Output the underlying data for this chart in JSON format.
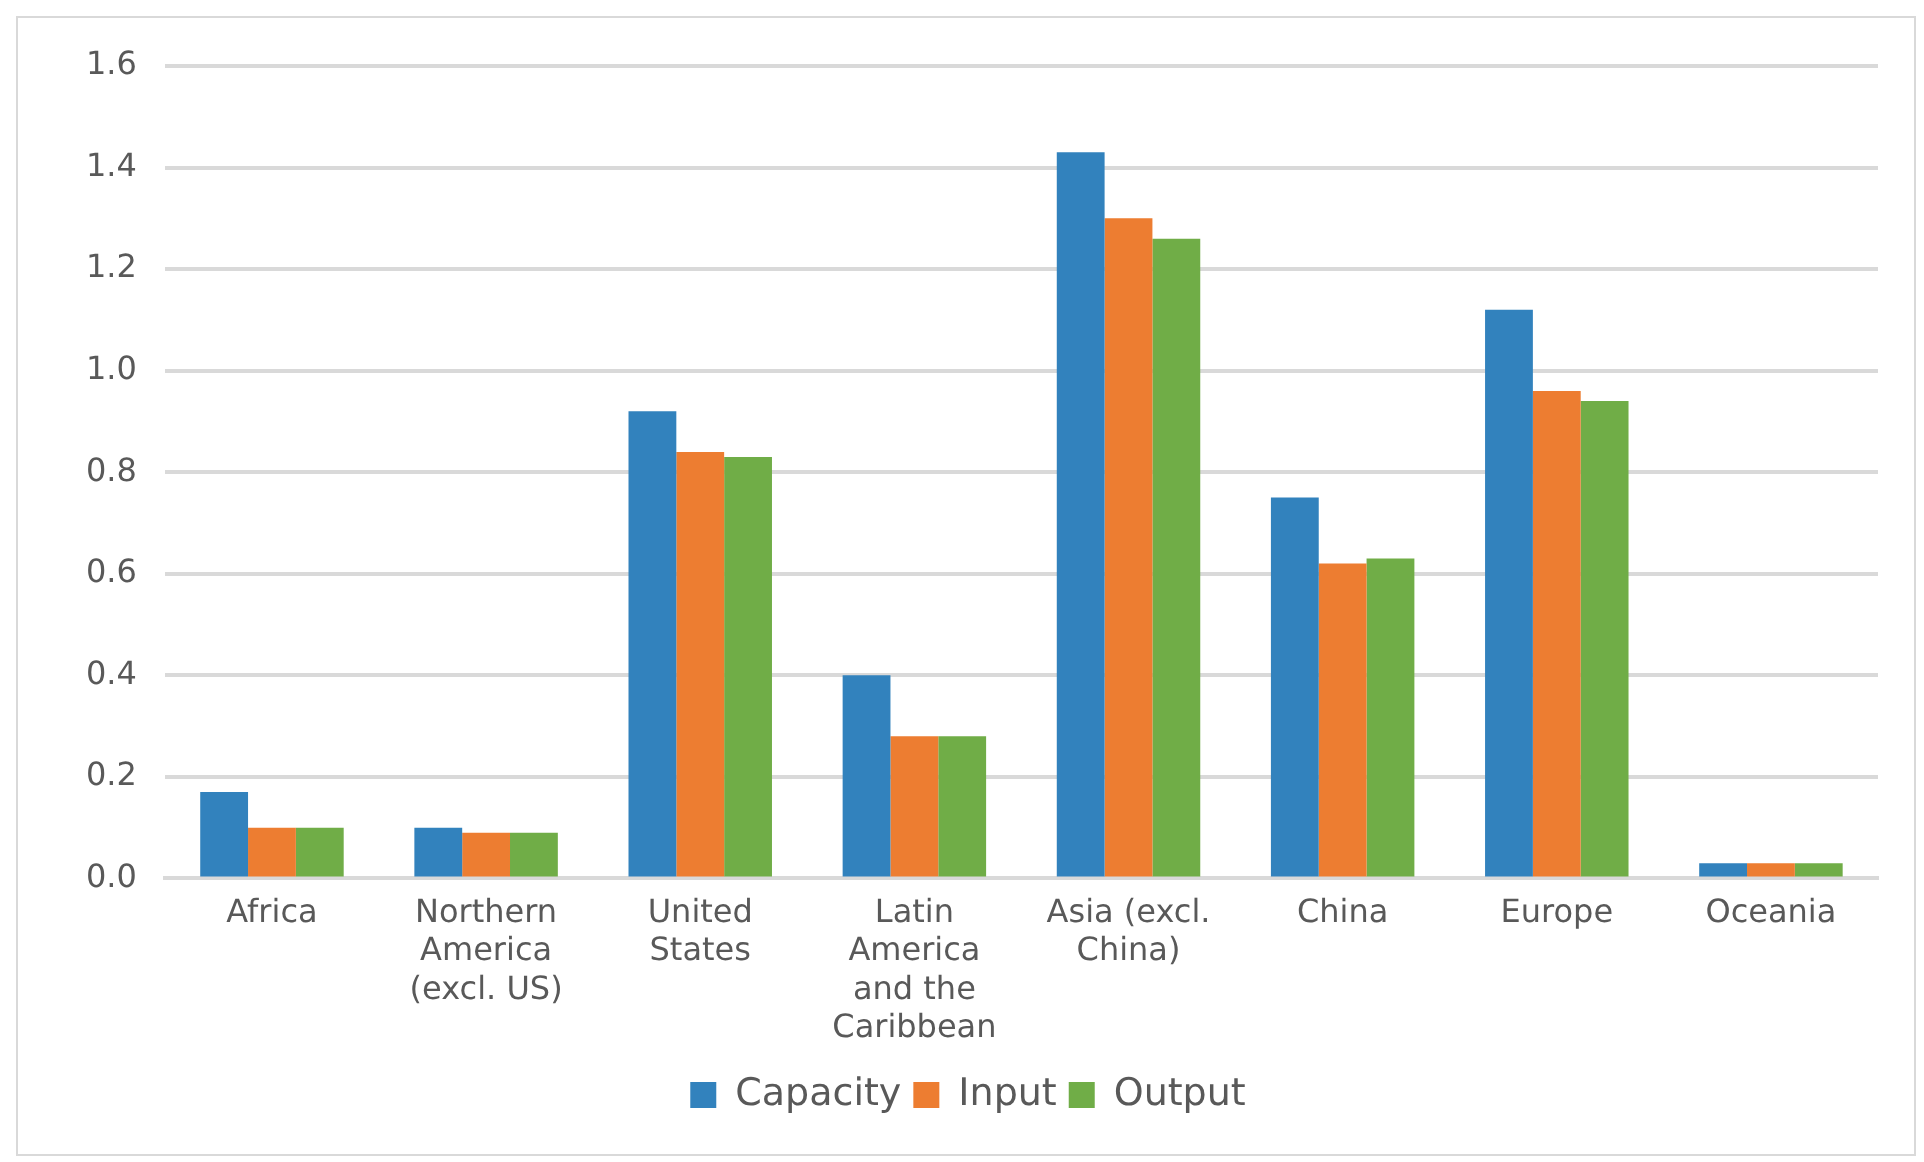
{
  "chart_data": {
    "type": "bar",
    "categories": [
      "Africa",
      "Northern America (excl. US)",
      "United States",
      "Latin America and the Caribbean",
      "Asia (excl. China)",
      "China",
      "Europe",
      "Oceania"
    ],
    "series": [
      {
        "name": "Capacity",
        "color": "#3282bd",
        "values": [
          0.17,
          0.1,
          0.92,
          0.4,
          1.43,
          0.75,
          1.12,
          0.03
        ]
      },
      {
        "name": "Input",
        "color": "#ed7d31",
        "values": [
          0.1,
          0.09,
          0.84,
          0.28,
          1.3,
          0.62,
          0.96,
          0.03
        ]
      },
      {
        "name": "Output",
        "color": "#70ad47",
        "values": [
          0.1,
          0.09,
          0.83,
          0.28,
          1.26,
          0.63,
          0.94,
          0.03
        ]
      }
    ],
    "ylim": [
      0,
      1.6
    ],
    "yticks": [
      {
        "value": 0,
        "label": "0.0"
      },
      {
        "value": 0.2,
        "label": "0.2"
      },
      {
        "value": 0.4,
        "label": "0.4"
      },
      {
        "value": 0.6,
        "label": "0.6"
      },
      {
        "value": 0.8,
        "label": "0.8"
      },
      {
        "value": 1,
        "label": "1.0"
      },
      {
        "value": 1.2,
        "label": "1.2"
      },
      {
        "value": 1.4,
        "label": "1.4"
      },
      {
        "value": 1.6,
        "label": "1.6"
      }
    ],
    "grid": "y",
    "legend": "bottom"
  }
}
